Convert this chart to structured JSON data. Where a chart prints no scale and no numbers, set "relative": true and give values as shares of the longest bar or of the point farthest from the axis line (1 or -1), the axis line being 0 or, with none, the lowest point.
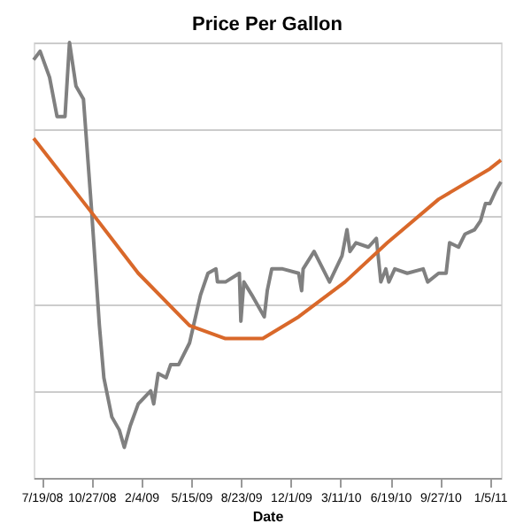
{
  "chart_data": {
    "type": "line",
    "title": "Price Per Gallon",
    "xlabel": "Date",
    "relative": true,
    "grid": "y",
    "legend": false,
    "marker": "none",
    "line_style": "solid",
    "xlim": [
      "2008-07-03",
      "2011-01-27"
    ],
    "xticks": [
      {
        "value": "2008-07-19",
        "label": "7/19/08"
      },
      {
        "value": "2008-10-27",
        "label": "10/27/08"
      },
      {
        "value": "2009-02-04",
        "label": "2/4/09"
      },
      {
        "value": "2009-05-15",
        "label": "5/15/09"
      },
      {
        "value": "2009-08-23",
        "label": "8/23/09"
      },
      {
        "value": "2009-12-01",
        "label": "12/1/09"
      },
      {
        "value": "2010-03-11",
        "label": "3/11/10"
      },
      {
        "value": "2010-06-19",
        "label": "6/19/10"
      },
      {
        "value": "2010-09-27",
        "label": "9/27/10"
      },
      {
        "value": "2011-01-05",
        "label": "1/5/11"
      }
    ],
    "series": [
      {
        "color": "#808080",
        "x": [
          "2008-07-03",
          "2008-07-16",
          "2008-08-04",
          "2008-08-19",
          "2008-09-04",
          "2008-09-13",
          "2008-09-26",
          "2008-10-11",
          "2008-10-27",
          "2008-11-12",
          "2008-11-21",
          "2008-12-07",
          "2008-12-22",
          "2009-01-01",
          "2009-01-13",
          "2009-01-29",
          "2009-02-23",
          "2009-03-01",
          "2009-03-10",
          "2009-03-26",
          "2009-04-04",
          "2009-04-20",
          "2009-05-12",
          "2009-06-03",
          "2009-06-18",
          "2009-07-04",
          "2009-07-07",
          "2009-07-23",
          "2009-08-20",
          "2009-08-23",
          "2009-08-29",
          "2009-09-14",
          "2009-10-09",
          "2009-10-15",
          "2009-10-24",
          "2009-11-15",
          "2009-12-17",
          "2009-12-23",
          "2009-12-26",
          "2010-01-17",
          "2010-02-17",
          "2010-03-14",
          "2010-03-24",
          "2010-03-30",
          "2010-04-11",
          "2010-05-06",
          "2010-05-22",
          "2010-05-31",
          "2010-06-10",
          "2010-06-16",
          "2010-06-28",
          "2010-07-23",
          "2010-08-24",
          "2010-09-02",
          "2010-09-24",
          "2010-10-09",
          "2010-10-16",
          "2010-11-03",
          "2010-11-16",
          "2010-12-05",
          "2010-12-17",
          "2010-12-27",
          "2011-01-05",
          "2011-01-17",
          "2011-01-27"
        ],
        "values": [
          0.96,
          0.98,
          0.92,
          0.83,
          0.83,
          1.0,
          0.9,
          0.87,
          0.62,
          0.35,
          0.23,
          0.14,
          0.11,
          0.07,
          0.12,
          0.17,
          0.2,
          0.17,
          0.24,
          0.23,
          0.26,
          0.26,
          0.31,
          0.42,
          0.47,
          0.48,
          0.45,
          0.45,
          0.47,
          0.36,
          0.45,
          0.42,
          0.37,
          0.43,
          0.48,
          0.48,
          0.47,
          0.43,
          0.48,
          0.52,
          0.45,
          0.51,
          0.57,
          0.52,
          0.54,
          0.53,
          0.55,
          0.45,
          0.48,
          0.45,
          0.48,
          0.47,
          0.48,
          0.45,
          0.47,
          0.47,
          0.54,
          0.53,
          0.56,
          0.57,
          0.59,
          0.63,
          0.63,
          0.66,
          0.68
        ]
      },
      {
        "color": "#d9682a",
        "x": [
          "2008-07-03",
          "2008-10-27",
          "2009-01-29",
          "2009-05-12",
          "2009-07-23",
          "2009-10-06",
          "2009-12-17",
          "2010-03-20",
          "2010-06-13",
          "2010-09-24",
          "2011-01-05",
          "2011-01-27"
        ],
        "values": [
          0.78,
          0.61,
          0.47,
          0.35,
          0.32,
          0.32,
          0.37,
          0.45,
          0.54,
          0.64,
          0.71,
          0.73
        ]
      }
    ]
  }
}
